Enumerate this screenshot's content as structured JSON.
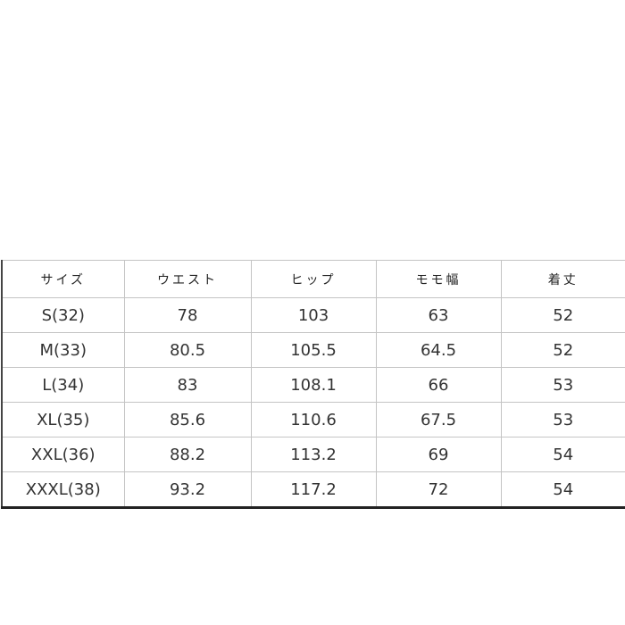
{
  "table": {
    "headers": [
      "サイズ",
      "ウエスト",
      "ヒップ",
      "モモ幅",
      "着丈"
    ],
    "rows": [
      [
        "S(32)",
        "78",
        "103",
        "63",
        "52"
      ],
      [
        "M(33)",
        "80.5",
        "105.5",
        "64.5",
        "52"
      ],
      [
        "L(34)",
        "83",
        "108.1",
        "66",
        "53"
      ],
      [
        "XL(35)",
        "85.6",
        "110.6",
        "67.5",
        "53"
      ],
      [
        "XXL(36)",
        "88.2",
        "113.2",
        "69",
        "54"
      ],
      [
        "XXXL(38)",
        "93.2",
        "117.2",
        "72",
        "54"
      ]
    ]
  }
}
